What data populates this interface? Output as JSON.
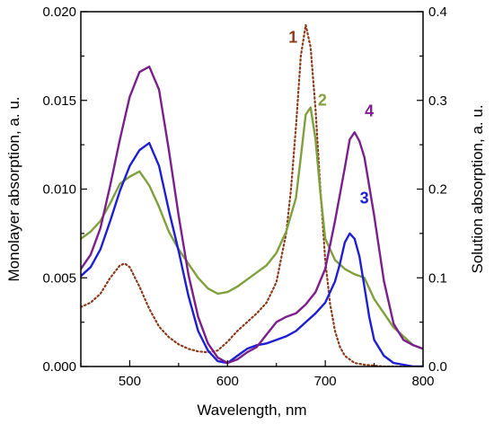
{
  "chart_data": {
    "type": "line",
    "xlabel": "Wavelength, nm",
    "ylabel_left": "Monolayer absorption, a. u.",
    "ylabel_right": "Solution absorption, a. u.",
    "xlim": [
      450,
      800
    ],
    "ylim_left": [
      0,
      0.02
    ],
    "ylim_right": [
      0,
      0.4
    ],
    "x_ticks": [
      "500",
      "600",
      "700",
      "800"
    ],
    "y_left_ticks": [
      "0.000",
      "0.005",
      "0.010",
      "0.015",
      "0.020"
    ],
    "y_right_ticks": [
      "0.0",
      "0.1",
      "0.2",
      "0.3",
      "0.4"
    ],
    "grid": false,
    "series": [
      {
        "name": "1",
        "axis": "right",
        "color": "#8B3A1A",
        "style": "dotted",
        "x": [
          450,
          460,
          470,
          480,
          490,
          495,
          500,
          510,
          520,
          530,
          540,
          550,
          560,
          570,
          580,
          590,
          600,
          610,
          620,
          630,
          640,
          650,
          660,
          665,
          670,
          675,
          680,
          685,
          690,
          695,
          700,
          705,
          710,
          715,
          720,
          730,
          740,
          750,
          760,
          770,
          780,
          790,
          800
        ],
        "y": [
          0.067,
          0.072,
          0.082,
          0.1,
          0.114,
          0.116,
          0.112,
          0.09,
          0.065,
          0.045,
          0.033,
          0.025,
          0.02,
          0.017,
          0.016,
          0.018,
          0.028,
          0.04,
          0.05,
          0.06,
          0.072,
          0.095,
          0.15,
          0.2,
          0.27,
          0.35,
          0.385,
          0.36,
          0.29,
          0.2,
          0.12,
          0.07,
          0.04,
          0.022,
          0.012,
          0.004,
          0.002,
          0.001,
          0,
          0,
          0,
          0,
          0
        ]
      },
      {
        "name": "2",
        "axis": "left",
        "color": "#7FA03C",
        "style": "solid",
        "x": [
          450,
          460,
          470,
          480,
          490,
          500,
          510,
          520,
          530,
          540,
          550,
          560,
          570,
          580,
          590,
          600,
          610,
          620,
          630,
          640,
          650,
          660,
          670,
          675,
          680,
          685,
          690,
          695,
          700,
          710,
          720,
          730,
          740,
          750,
          760,
          770,
          780,
          790,
          800
        ],
        "y": [
          0.0072,
          0.0076,
          0.0082,
          0.0092,
          0.0103,
          0.0107,
          0.011,
          0.0102,
          0.009,
          0.0076,
          0.0066,
          0.0058,
          0.005,
          0.0044,
          0.0041,
          0.0042,
          0.0045,
          0.0049,
          0.0053,
          0.0057,
          0.0064,
          0.0076,
          0.0095,
          0.0118,
          0.0142,
          0.0146,
          0.0128,
          0.0098,
          0.0072,
          0.006,
          0.0055,
          0.0052,
          0.005,
          0.0038,
          0.003,
          0.0022,
          0.0017,
          0.0012,
          0.001
        ]
      },
      {
        "name": "3",
        "axis": "left",
        "color": "#1E1ED2",
        "style": "solid",
        "x": [
          450,
          460,
          470,
          480,
          490,
          500,
          510,
          520,
          530,
          540,
          550,
          560,
          570,
          580,
          590,
          600,
          610,
          620,
          630,
          640,
          650,
          660,
          670,
          680,
          690,
          700,
          710,
          715,
          720,
          725,
          730,
          735,
          740,
          745,
          750,
          760,
          770,
          780,
          790,
          800
        ],
        "y": [
          0.0051,
          0.0056,
          0.0066,
          0.0082,
          0.0099,
          0.0113,
          0.0122,
          0.0126,
          0.0113,
          0.0088,
          0.0065,
          0.004,
          0.002,
          0.0009,
          0.0003,
          0.0002,
          0.0006,
          0.001,
          0.0012,
          0.0013,
          0.0015,
          0.0017,
          0.002,
          0.0025,
          0.003,
          0.0036,
          0.0048,
          0.0058,
          0.007,
          0.0075,
          0.0072,
          0.0062,
          0.0045,
          0.0028,
          0.0015,
          0.0006,
          0.0002,
          0.0001,
          0,
          0
        ]
      },
      {
        "name": "4",
        "axis": "left",
        "color": "#7B1F8C",
        "style": "solid",
        "x": [
          450,
          460,
          470,
          480,
          490,
          500,
          510,
          520,
          530,
          540,
          550,
          560,
          570,
          580,
          590,
          600,
          610,
          620,
          630,
          640,
          650,
          660,
          670,
          680,
          690,
          700,
          710,
          720,
          725,
          730,
          735,
          740,
          750,
          760,
          770,
          780,
          790,
          800
        ],
        "y": [
          0.0055,
          0.0063,
          0.0078,
          0.0102,
          0.0128,
          0.0152,
          0.0166,
          0.0169,
          0.0156,
          0.0122,
          0.0085,
          0.0052,
          0.0028,
          0.0013,
          0.0005,
          0.0002,
          0.0004,
          0.0008,
          0.0011,
          0.0018,
          0.0025,
          0.0028,
          0.003,
          0.0035,
          0.0042,
          0.0055,
          0.0082,
          0.0112,
          0.0128,
          0.0132,
          0.0127,
          0.0118,
          0.0085,
          0.0048,
          0.0024,
          0.0015,
          0.0012,
          0.001
        ]
      }
    ],
    "annotations": [
      {
        "text": "1",
        "series": "1",
        "x": 667,
        "y_right": 0.365
      },
      {
        "text": "2",
        "series": "2",
        "x": 697,
        "y_left": 0.0147
      },
      {
        "text": "3",
        "series": "3",
        "x": 740,
        "y_left": 0.0092
      },
      {
        "text": "4",
        "series": "4",
        "x": 745,
        "y_left": 0.0141
      }
    ]
  }
}
